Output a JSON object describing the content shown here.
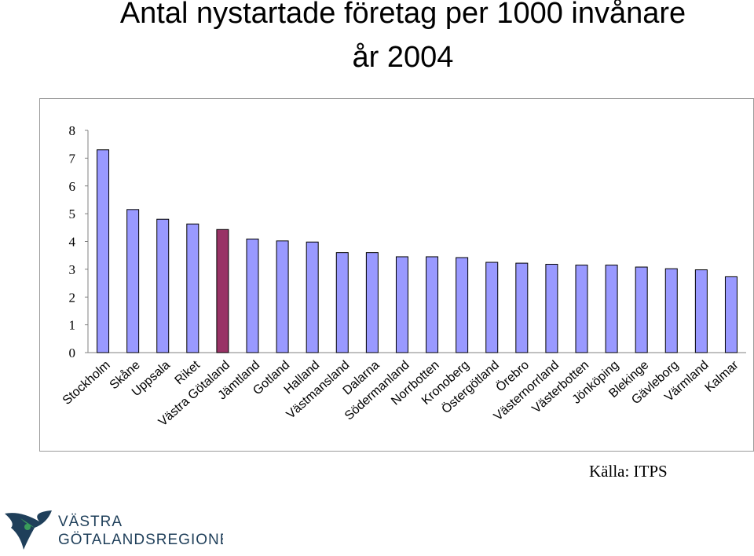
{
  "title_line1": "Antal nystartade företag per 1000 invånare",
  "title_line2": "år 2004",
  "source": "Källa: ITPS",
  "logo": {
    "line1": "VÄSTRA",
    "line2": "GÖTALANDSREGIONEN",
    "icon": "vastra-gotaland-bird-logo"
  },
  "colors": {
    "bar": "#9999ff",
    "highlight": "#993366",
    "border": "#000000"
  },
  "chart_data": {
    "type": "bar",
    "title": "Antal nystartade företag per 1000 invånare år 2004",
    "xlabel": "",
    "ylabel": "",
    "ylim": [
      0,
      8
    ],
    "yticks": [
      0,
      1,
      2,
      3,
      4,
      5,
      6,
      7,
      8
    ],
    "grid": false,
    "legend": "none",
    "highlight_category": "Västra Götaland",
    "categories": [
      "Stockholm",
      "Skåne",
      "Uppsala",
      "Riket",
      "Västra Götaland",
      "Jämtland",
      "Gotland",
      "Halland",
      "Västmansland",
      "Dalarna",
      "Södermanland",
      "Norrbotten",
      "Kronoberg",
      "Östergötland",
      "Örebro",
      "Västernorrland",
      "Västerbotten",
      "Jönköping",
      "Blekinge",
      "Gävleborg",
      "Värmland",
      "Kalmar"
    ],
    "values": [
      7.3,
      5.15,
      4.8,
      4.63,
      4.43,
      4.09,
      4.02,
      3.98,
      3.6,
      3.6,
      3.45,
      3.45,
      3.42,
      3.25,
      3.22,
      3.18,
      3.15,
      3.15,
      3.08,
      3.02,
      2.98,
      2.73
    ]
  }
}
